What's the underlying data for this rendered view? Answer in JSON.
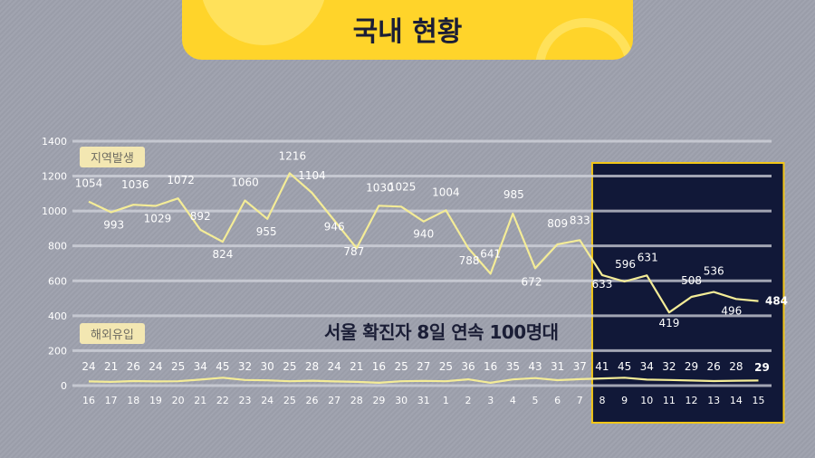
{
  "header": {
    "title": "국내 현황"
  },
  "labels": {
    "domestic": "지역발생",
    "overseas": "해외유입"
  },
  "headline": "서울 확진자 8일 연속 100명대",
  "colors": {
    "accent": "#ffd42a",
    "line": "#f4ec97",
    "highlight_bg": "#111838",
    "highlight_border": "#f2c618"
  },
  "chart_data": {
    "type": "line",
    "x": [
      "16",
      "17",
      "18",
      "19",
      "20",
      "21",
      "22",
      "23",
      "24",
      "25",
      "26",
      "27",
      "28",
      "29",
      "30",
      "31",
      "1",
      "2",
      "3",
      "4",
      "5",
      "6",
      "7",
      "8",
      "9",
      "10",
      "11",
      "12",
      "13",
      "14",
      "15"
    ],
    "ylim": [
      0,
      1400
    ],
    "yticks": [
      0,
      200,
      400,
      600,
      800,
      1000,
      1200,
      1400
    ],
    "grid": true,
    "highlight_range": [
      "8",
      "15"
    ],
    "series": [
      {
        "name": "지역발生",
        "values": [
          1054,
          993,
          1036,
          1029,
          1072,
          892,
          824,
          1060,
          955,
          1216,
          1104,
          946,
          787,
          1030,
          1025,
          940,
          1004,
          788,
          641,
          985,
          672,
          809,
          833,
          633,
          596,
          631,
          419,
          508,
          536,
          496,
          484
        ]
      },
      {
        "name": "해외유입",
        "values": [
          24,
          21,
          26,
          24,
          25,
          34,
          45,
          32,
          30,
          25,
          28,
          24,
          21,
          16,
          25,
          27,
          25,
          36,
          16,
          35,
          43,
          31,
          37,
          41,
          45,
          34,
          32,
          29,
          26,
          28,
          29
        ]
      }
    ]
  }
}
